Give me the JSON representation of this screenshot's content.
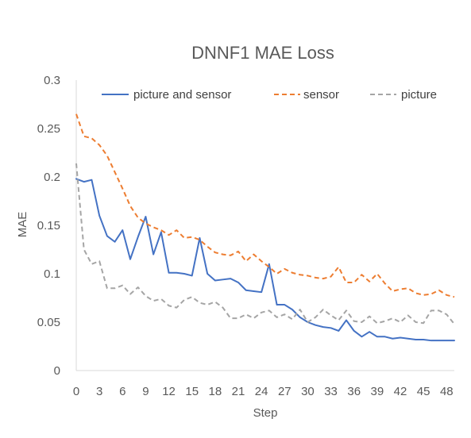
{
  "chart_data": {
    "type": "line",
    "title": "DNNF1 MAE Loss",
    "xlabel": "Step",
    "ylabel": "MAE",
    "xlim": [
      0,
      49
    ],
    "ylim": [
      0,
      0.3
    ],
    "x_ticks": [
      0,
      3,
      6,
      9,
      12,
      15,
      18,
      21,
      24,
      27,
      30,
      33,
      36,
      39,
      42,
      45,
      48
    ],
    "y_ticks": [
      0,
      0.05,
      0.1,
      0.15,
      0.2,
      0.25,
      0.3
    ],
    "x_tick_labels": [
      "0",
      "3",
      "6",
      "9",
      "12",
      "15",
      "18",
      "21",
      "24",
      "27",
      "30",
      "33",
      "36",
      "39",
      "42",
      "45",
      "48"
    ],
    "y_tick_labels": [
      "0",
      "0.05",
      "0.1",
      "0.15",
      "0.2",
      "0.25",
      "0.3"
    ],
    "grid": false,
    "legend_position": "top",
    "x": [
      0,
      1,
      2,
      3,
      4,
      5,
      6,
      7,
      8,
      9,
      10,
      11,
      12,
      13,
      14,
      15,
      16,
      17,
      18,
      19,
      20,
      21,
      22,
      23,
      24,
      25,
      26,
      27,
      28,
      29,
      30,
      31,
      32,
      33,
      34,
      35,
      36,
      37,
      38,
      39,
      40,
      41,
      42,
      43,
      44,
      45,
      46,
      47,
      48,
      49
    ],
    "series": [
      {
        "name": "picture and sensor",
        "color": "#4472c4",
        "dash": "solid",
        "values": [
          0.198,
          0.195,
          0.197,
          0.16,
          0.139,
          0.133,
          0.145,
          0.115,
          0.138,
          0.159,
          0.12,
          0.143,
          0.101,
          0.101,
          0.1,
          0.098,
          0.137,
          0.1,
          0.093,
          0.094,
          0.095,
          0.091,
          0.083,
          0.082,
          0.081,
          0.11,
          0.068,
          0.068,
          0.063,
          0.055,
          0.05,
          0.047,
          0.045,
          0.044,
          0.041,
          0.052,
          0.041,
          0.035,
          0.04,
          0.035,
          0.035,
          0.033,
          0.034,
          0.033,
          0.032,
          0.032,
          0.031,
          0.031,
          0.031,
          0.031
        ]
      },
      {
        "name": "sensor",
        "color": "#ed7d31",
        "dash": "dashed",
        "values": [
          0.265,
          0.242,
          0.24,
          0.233,
          0.222,
          0.205,
          0.188,
          0.17,
          0.158,
          0.152,
          0.148,
          0.145,
          0.14,
          0.145,
          0.137,
          0.138,
          0.135,
          0.128,
          0.122,
          0.12,
          0.119,
          0.123,
          0.113,
          0.12,
          0.113,
          0.107,
          0.1,
          0.105,
          0.101,
          0.099,
          0.098,
          0.096,
          0.095,
          0.097,
          0.107,
          0.091,
          0.091,
          0.099,
          0.092,
          0.1,
          0.09,
          0.082,
          0.084,
          0.085,
          0.08,
          0.078,
          0.079,
          0.083,
          0.078,
          0.076
        ]
      },
      {
        "name": "picture",
        "color": "#a5a5a5",
        "dash": "dashed",
        "values": [
          0.214,
          0.125,
          0.11,
          0.113,
          0.085,
          0.085,
          0.088,
          0.079,
          0.086,
          0.077,
          0.072,
          0.074,
          0.067,
          0.065,
          0.073,
          0.076,
          0.07,
          0.068,
          0.071,
          0.065,
          0.054,
          0.054,
          0.058,
          0.054,
          0.06,
          0.062,
          0.055,
          0.058,
          0.053,
          0.063,
          0.05,
          0.055,
          0.063,
          0.057,
          0.052,
          0.062,
          0.051,
          0.05,
          0.056,
          0.049,
          0.051,
          0.054,
          0.05,
          0.057,
          0.05,
          0.049,
          0.062,
          0.062,
          0.058,
          0.048
        ]
      }
    ]
  }
}
